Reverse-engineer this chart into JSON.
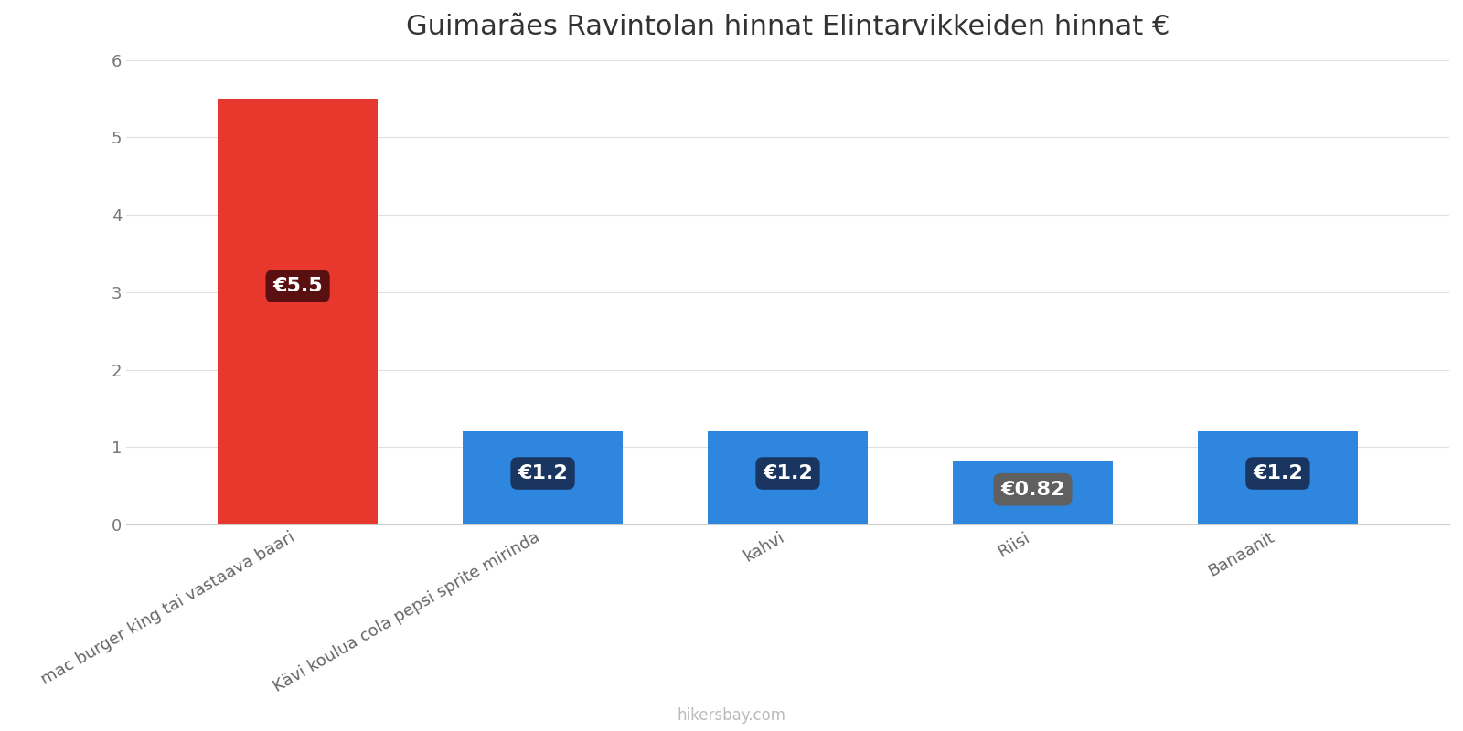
{
  "title": "Guimarães Ravintolan hinnat Elintarvikkeiden hinnat €",
  "categories": [
    "mac burger king tai vastaava baari",
    "Kävi koulua cola pepsi sprite mirinda",
    "kahvi",
    "Riisi",
    "Banaanit"
  ],
  "values": [
    5.5,
    1.2,
    1.2,
    0.82,
    1.2
  ],
  "bar_colors": [
    "#e8372c",
    "#2e86de",
    "#2e86de",
    "#2e86de",
    "#2e86de"
  ],
  "label_bg_colors": [
    "#5a1010",
    "#1a3560",
    "#1a3560",
    "#606060",
    "#1a3560"
  ],
  "labels": [
    "€5.5",
    "€1.2",
    "€1.2",
    "€0.82",
    "€1.2"
  ],
  "ylim": [
    0,
    6
  ],
  "yticks": [
    0,
    1,
    2,
    3,
    4,
    5,
    6
  ],
  "watermark": "hikersbay.com",
  "background_color": "#ffffff",
  "title_fontsize": 22,
  "label_fontsize": 16,
  "tick_fontsize": 13,
  "bar_width": 0.65
}
